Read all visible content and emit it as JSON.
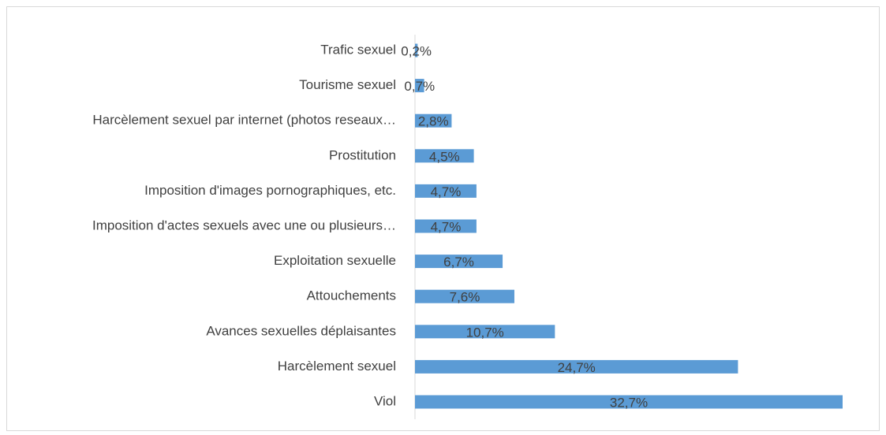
{
  "chart_data": {
    "type": "bar",
    "orientation": "horizontal",
    "categories": [
      "Trafic sexuel",
      "Tourisme sexuel",
      "Harcèlement sexuel par internet (photos reseaux…",
      "Prostitution",
      "Imposition d'images pornographiques, etc.",
      "Imposition d'actes sexuels avec une ou plusieurs…",
      "Exploitation sexuelle",
      "Attouchements",
      "Avances sexuelles déplaisantes",
      "Harcèlement sexuel",
      "Viol"
    ],
    "values": [
      0.2,
      0.7,
      2.8,
      4.5,
      4.7,
      4.7,
      6.7,
      7.6,
      10.7,
      24.7,
      32.7
    ],
    "value_labels": [
      "0,2%",
      "0,7%",
      "2,8%",
      "4,5%",
      "4,7%",
      "4,7%",
      "6,7%",
      "7,6%",
      "10,7%",
      "24,7%",
      "32,7%"
    ],
    "color": "#5b9bd5"
  }
}
